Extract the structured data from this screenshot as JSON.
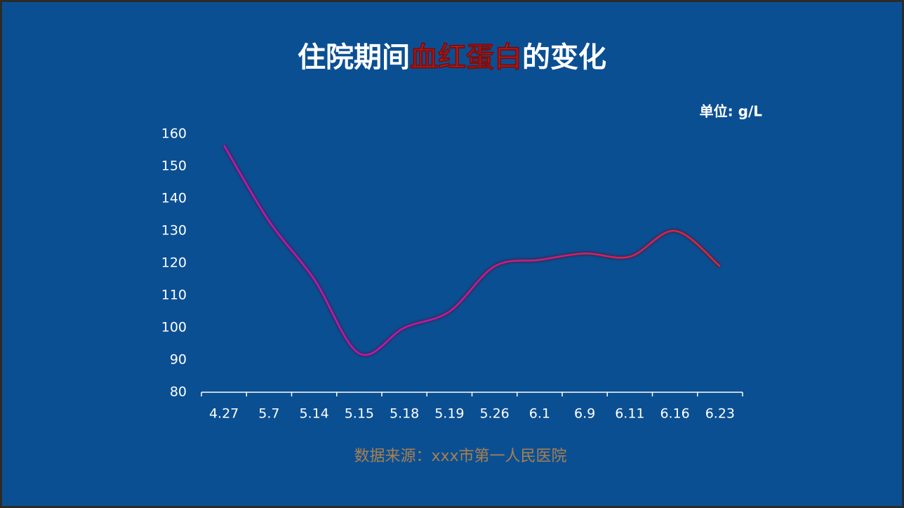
{
  "chart_data": {
    "type": "line",
    "title": [
      "住院期间",
      "血红蛋白",
      "的变化"
    ],
    "unit": "单位: g/L",
    "source": "数据来源：xxx市第一人民医院",
    "categories": [
      "4.27",
      "5.7",
      "5.14",
      "5.15",
      "5.18",
      "5.19",
      "5.26",
      "6.1",
      "6.9",
      "6.11",
      "6.16",
      "6.23"
    ],
    "series": [
      {
        "color": "#e3262a",
        "start_color": "#c414b4",
        "values": [
          156.5,
          133,
          115,
          92,
          100,
          105,
          119,
          121,
          123,
          122,
          130,
          119
        ]
      }
    ],
    "ylim": [
      80,
      160
    ],
    "yticks": [
      80,
      90,
      100,
      110,
      120,
      130,
      140,
      150,
      160
    ],
    "grid": false
  }
}
